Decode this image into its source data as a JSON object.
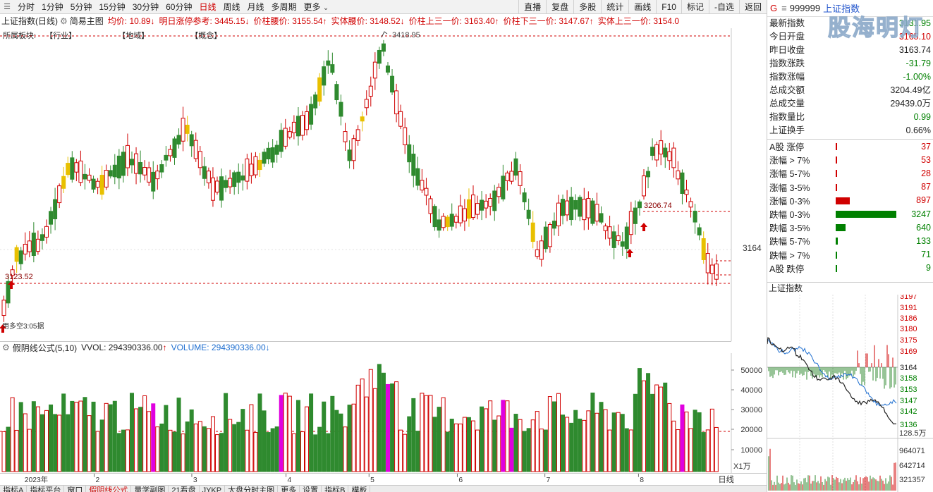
{
  "toolbar": {
    "left": [
      "分时",
      "1分钟",
      "5分钟",
      "15分钟",
      "30分钟",
      "60分钟",
      "日线",
      "周线",
      "月线",
      "多周期",
      "更多"
    ],
    "active": "日线",
    "right": [
      "直播",
      "复盘",
      "多股",
      "统计",
      "画线",
      "F10",
      "标记",
      "-自选",
      "返回"
    ]
  },
  "info": {
    "title": "上证指数(日线)",
    "gear_label": "简易主图",
    "items": [
      {
        "label": "均价: 10.89",
        "arrow": "↓",
        "color": "#d00000"
      },
      {
        "label": "明日涨停参考: 3445.15",
        "arrow": "↓",
        "color": "#d00000"
      },
      {
        "label": "价柱腰价: 3155.54",
        "arrow": "↑",
        "color": "#d00000"
      },
      {
        "label": "实体腰价: 3148.52",
        "arrow": "↓",
        "color": "#d00000"
      },
      {
        "label": "价柱上三一价: 3163.40",
        "arrow": "↑",
        "color": "#d00000"
      },
      {
        "label": "价柱下三一价: 3147.67",
        "arrow": "↑",
        "color": "#d00000"
      },
      {
        "label": "实体上三一价: 3154.0",
        "arrow": "",
        "color": "#d00000"
      }
    ]
  },
  "sector": {
    "label": "所属板块:",
    "items": [
      "【行业】",
      "【地域】",
      "【概念】"
    ]
  },
  "main_chart": {
    "high_label": "3418.95",
    "level_mid": "3206.74",
    "level_low": "3123.52",
    "price_tag": "3164",
    "bottom_left_label": "用多空3:05据"
  },
  "volume": {
    "title": "假阴线公式(5,10)",
    "vvol": "VVOL: 294390336.00",
    "volume": "VOLUME: 294390336.00",
    "axis": [
      "50000",
      "40000",
      "30000",
      "20000",
      "10000"
    ],
    "unit": "X1万"
  },
  "axis": {
    "year": "2023年",
    "months": [
      "2",
      "3",
      "4",
      "5",
      "6",
      "7",
      "8"
    ],
    "right_label": "日线"
  },
  "tabs": [
    "指标A",
    "指标平台",
    "窗口",
    "假阴线公式",
    "量学副图",
    "21看盘",
    "JYKP",
    "大盘分时主图",
    "更多",
    "设置",
    "指标B",
    "模板"
  ],
  "tabs_active": "假阴线公式",
  "panel": {
    "code": "999999",
    "name": "上证指数",
    "watermark": "股海明灯",
    "stats": [
      {
        "k": "最新指数",
        "v": "3131.95",
        "c": "#008000"
      },
      {
        "k": "今日开盘",
        "v": "3165.10",
        "c": "#d00000"
      },
      {
        "k": "昨日收盘",
        "v": "3163.74",
        "c": "#222"
      },
      {
        "k": "指数涨跌",
        "v": "-31.79",
        "c": "#008000"
      },
      {
        "k": "指数涨幅",
        "v": "-1.00%",
        "c": "#008000"
      },
      {
        "k": "总成交额",
        "v": "3204.49亿",
        "c": "#222"
      },
      {
        "k": "总成交量",
        "v": "29439.0万",
        "c": "#222"
      },
      {
        "k": "指数量比",
        "v": "0.99",
        "c": "#008000"
      },
      {
        "k": "上证换手",
        "v": "0.66%",
        "c": "#222"
      }
    ],
    "dist": [
      {
        "k": "A股 涨停",
        "v": "37",
        "c": "#d00000",
        "w": 0.005
      },
      {
        "k": "涨幅 > 7%",
        "v": "53",
        "c": "#d00000",
        "w": 0.005
      },
      {
        "k": "涨幅 5-7%",
        "v": "28",
        "c": "#d00000",
        "w": 0.004
      },
      {
        "k": "涨幅 3-5%",
        "v": "87",
        "c": "#d00000",
        "w": 0.025
      },
      {
        "k": "涨幅 0-3%",
        "v": "897",
        "c": "#d00000",
        "w": 0.22
      },
      {
        "k": "跌幅 0-3%",
        "v": "3247",
        "c": "#008000",
        "w": 0.96
      },
      {
        "k": "跌幅 3-5%",
        "v": "640",
        "c": "#008000",
        "w": 0.16
      },
      {
        "k": "跌幅 5-7%",
        "v": "133",
        "c": "#008000",
        "w": 0.035
      },
      {
        "k": "跌幅 > 7%",
        "v": "71",
        "c": "#008000",
        "w": 0.006
      },
      {
        "k": "A股 跌停",
        "v": "9",
        "c": "#008000",
        "w": 0.004
      }
    ],
    "mini_title": "上证指数",
    "mini_axis": [
      "3197",
      "3191",
      "3186",
      "3180",
      "3175",
      "3169",
      "3164",
      "3158",
      "3153",
      "3147",
      "3142",
      "3136"
    ],
    "mini_vol": [
      "128.5万",
      "964071",
      "642714",
      "321357"
    ]
  },
  "colors": {
    "up": "#d00000",
    "down": "#2f8a2f",
    "magenta": "#e000e0",
    "yellow": "#e8c000"
  }
}
